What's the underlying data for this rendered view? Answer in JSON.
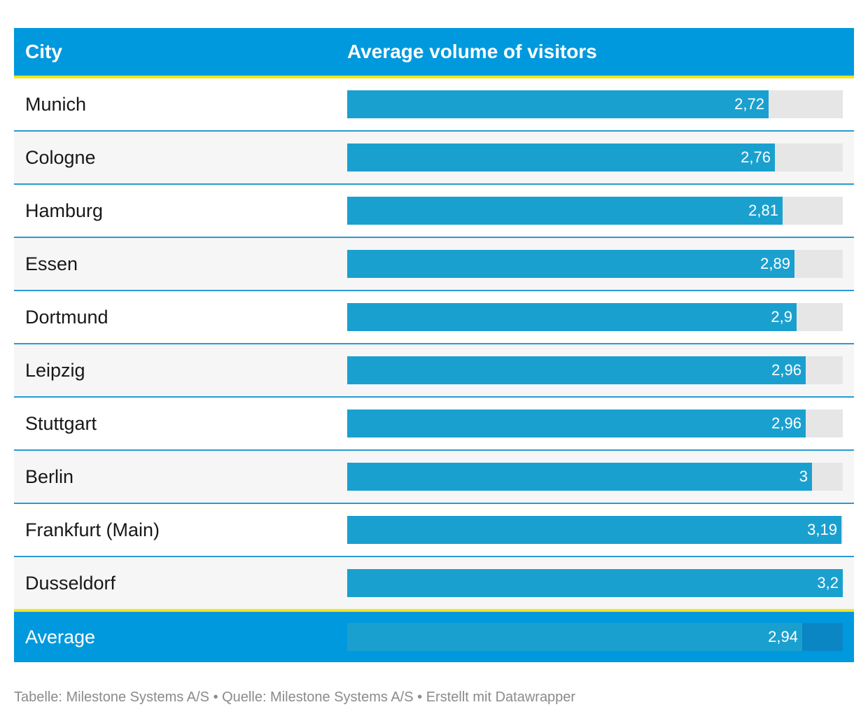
{
  "chart_data": {
    "type": "table",
    "columns": [
      "City",
      "Average volume of visitors"
    ],
    "max_value": 3.2,
    "rows": [
      {
        "city": "Munich",
        "value": 2.72,
        "label": "2,72"
      },
      {
        "city": "Cologne",
        "value": 2.76,
        "label": "2,76"
      },
      {
        "city": "Hamburg",
        "value": 2.81,
        "label": "2,81"
      },
      {
        "city": "Essen",
        "value": 2.89,
        "label": "2,89"
      },
      {
        "city": "Dortmund",
        "value": 2.9,
        "label": "2,9"
      },
      {
        "city": "Leipzig",
        "value": 2.96,
        "label": "2,96"
      },
      {
        "city": "Stuttgart",
        "value": 2.96,
        "label": "2,96"
      },
      {
        "city": "Berlin",
        "value": 3.0,
        "label": "3"
      },
      {
        "city": "Frankfurt (Main)",
        "value": 3.19,
        "label": "3,19"
      },
      {
        "city": "Dusseldorf",
        "value": 3.2,
        "label": "3,2"
      }
    ],
    "summary": {
      "city": "Average",
      "value": 2.94,
      "label": "2,94"
    }
  },
  "footer": "Tabelle: Milestone Systems A/S • Quelle: Milestone Systems A/S • Erstellt mit Datawrapper",
  "colors": {
    "header_bg": "#0099dd",
    "accent_line": "#f2e51a",
    "bar_fill": "#1aa0cf",
    "bar_track": "#e6e6e6",
    "row_divider": "#2a9bd3"
  }
}
